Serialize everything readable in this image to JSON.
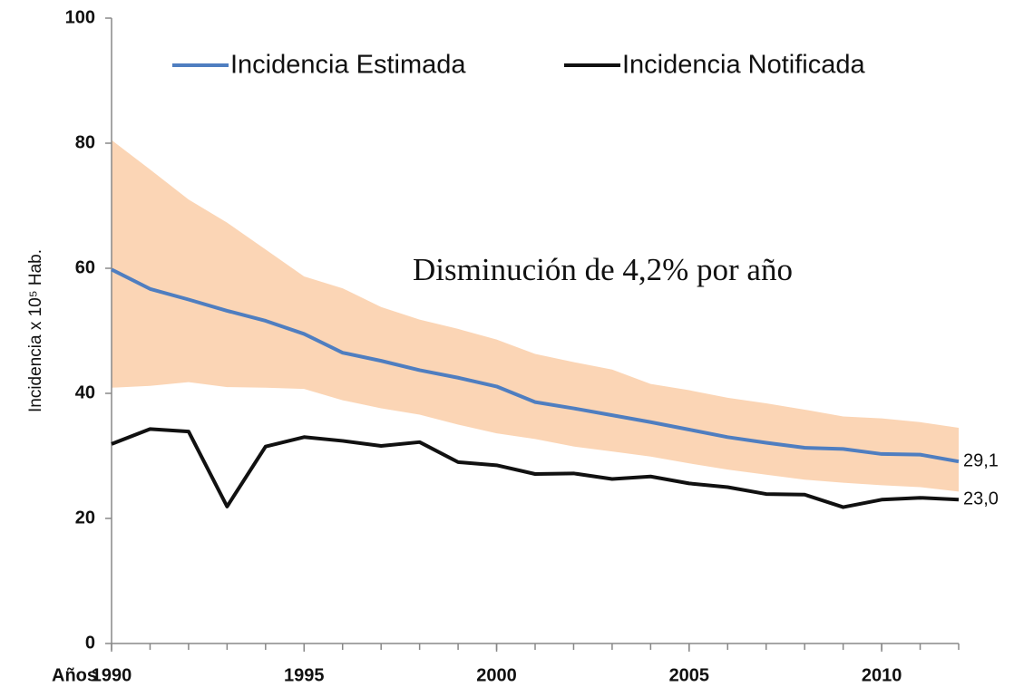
{
  "chart_data": {
    "type": "line",
    "y_label": "Incidencia x 10⁵ Hab.",
    "x_label": "Años",
    "annotation": "Disminución de 4,2% por año",
    "x": [
      1990,
      1991,
      1992,
      1993,
      1994,
      1995,
      1996,
      1997,
      1998,
      1999,
      2000,
      2001,
      2002,
      2003,
      2004,
      2005,
      2006,
      2007,
      2008,
      2009,
      2010,
      2011,
      2012
    ],
    "xlim": [
      1990,
      2012
    ],
    "xticks": [
      1990,
      1995,
      2000,
      2005,
      2010
    ],
    "ylim": [
      0,
      100
    ],
    "yticks": [
      0,
      20,
      40,
      60,
      80,
      100
    ],
    "grid": false,
    "legend": "top",
    "band": {
      "color": "#fbd5b5",
      "upper": [
        80.5,
        75.8,
        71,
        67.3,
        63,
        58.7,
        56.8,
        53.8,
        51.8,
        50.3,
        48.6,
        46.3,
        45,
        43.8,
        41.5,
        40.5,
        39.3,
        38.4,
        37.4,
        36.3,
        36,
        35.4,
        34.5
      ],
      "lower": [
        40.9,
        41.2,
        41.8,
        41,
        40.9,
        40.7,
        38.9,
        37.6,
        36.6,
        35,
        33.6,
        32.7,
        31.5,
        30.7,
        29.9,
        28.8,
        27.8,
        27,
        26.2,
        25.7,
        25.3,
        25,
        24.3
      ]
    },
    "series": [
      {
        "name": "Incidencia Estimada",
        "color": "#4f7ec0",
        "values": [
          59.8,
          56.7,
          55,
          53.2,
          51.6,
          49.5,
          46.5,
          45.2,
          43.7,
          42.5,
          41.1,
          38.6,
          37.6,
          36.5,
          35.4,
          34.2,
          33,
          32.1,
          31.3,
          31.1,
          30.3,
          30.2,
          29.1
        ],
        "value_labels": [
          null,
          null,
          null,
          null,
          null,
          null,
          null,
          null,
          null,
          null,
          null,
          null,
          null,
          null,
          null,
          null,
          null,
          null,
          null,
          null,
          null,
          null,
          "29,1"
        ]
      },
      {
        "name": "Incidencia Notificada",
        "color": "#111111",
        "values": [
          31.9,
          34.3,
          33.9,
          21.9,
          31.5,
          33,
          32.4,
          31.6,
          32.2,
          29,
          28.5,
          27.1,
          27.2,
          26.3,
          26.7,
          25.6,
          25,
          23.9,
          23.8,
          21.8,
          23,
          23.3,
          23.0
        ],
        "value_labels": [
          null,
          null,
          null,
          null,
          null,
          null,
          null,
          null,
          null,
          null,
          null,
          null,
          null,
          null,
          null,
          null,
          null,
          null,
          null,
          null,
          null,
          null,
          "23,0"
        ]
      }
    ]
  }
}
